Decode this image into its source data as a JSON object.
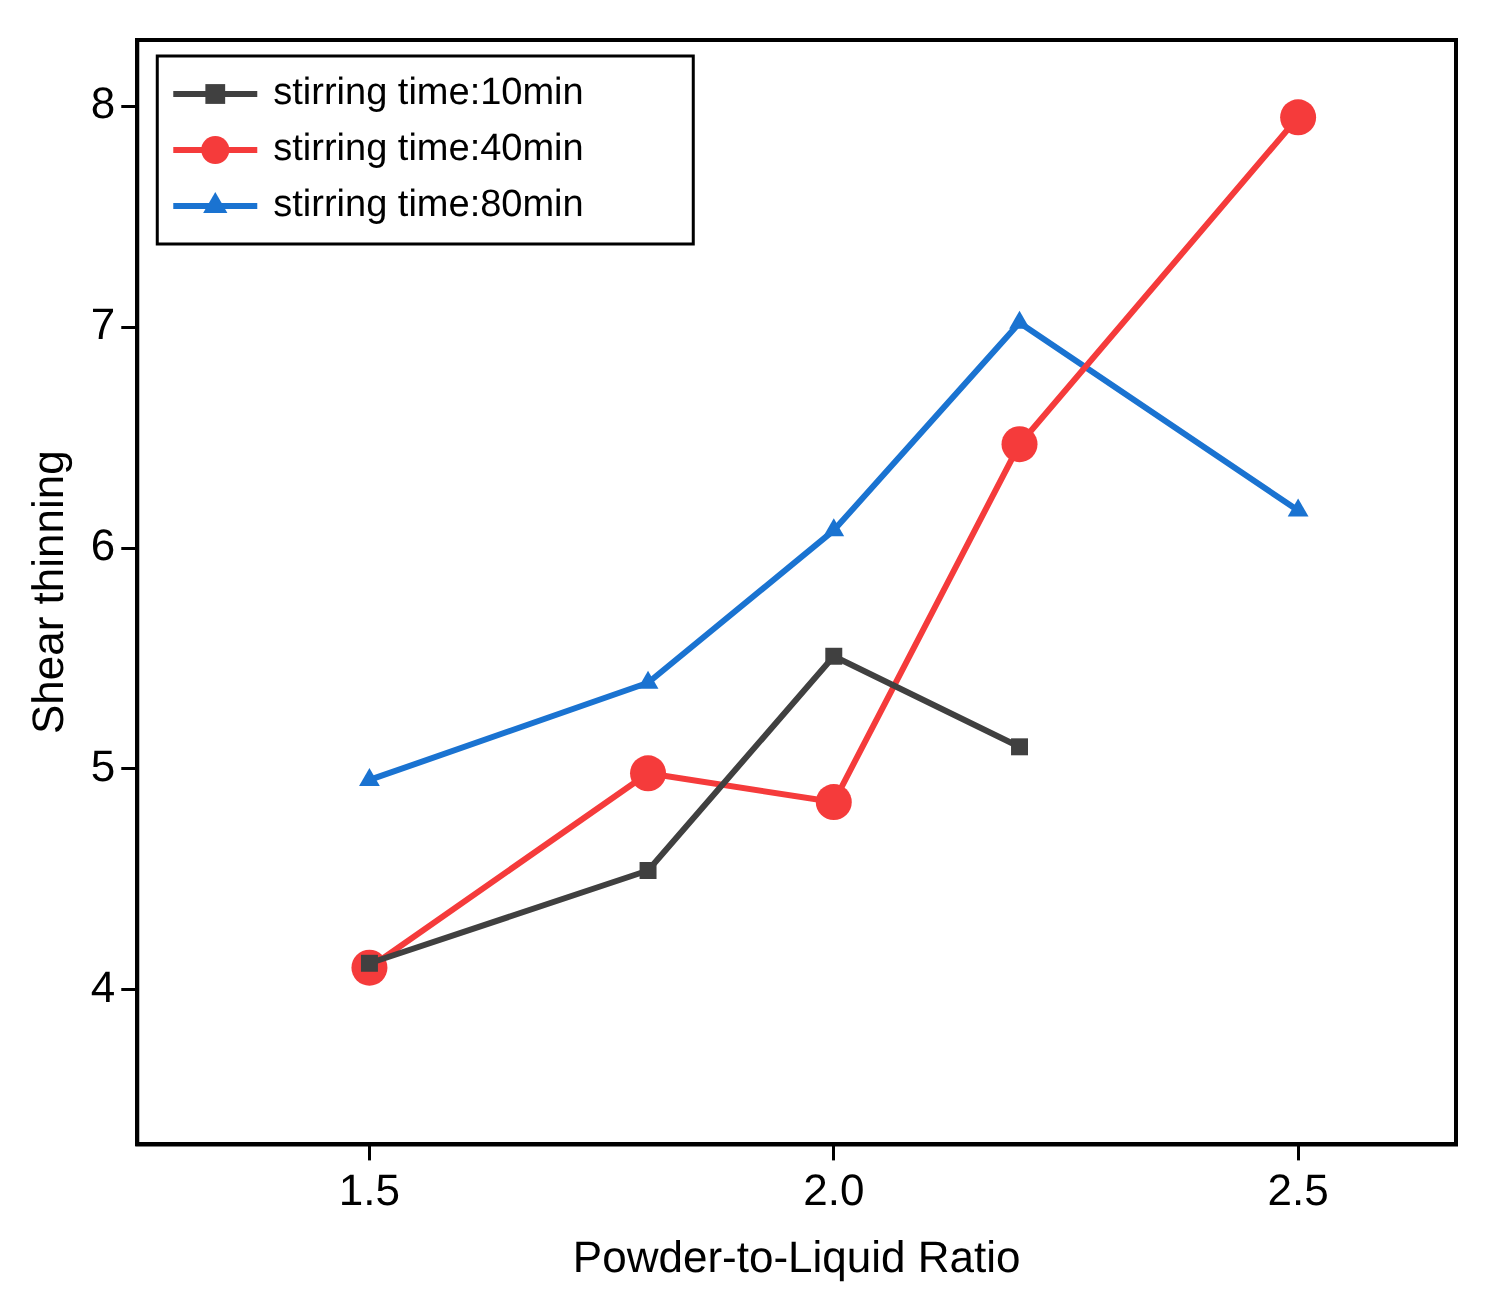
{
  "chart_data": {
    "type": "line",
    "xlabel": "Powder-to-Liquid Ratio",
    "ylabel": "Shear thinning",
    "xlim": [
      1.25,
      2.67
    ],
    "xticks": [
      {
        "value": 1.5,
        "label": "1.5"
      },
      {
        "value": 2.0,
        "label": "2.0"
      },
      {
        "value": 2.5,
        "label": "2.5"
      }
    ],
    "ylim": [
      3.3,
      8.3
    ],
    "yticks": [
      4,
      5,
      6,
      7,
      8
    ],
    "grid": false,
    "legend": "top left",
    "series": [
      {
        "name": "stirring time:10min",
        "color": "#404040",
        "marker": "square",
        "x": [
          1.5,
          1.8,
          2.0,
          2.2
        ],
        "values": [
          4.12,
          4.54,
          5.51,
          5.1
        ]
      },
      {
        "name": "stirring time:40min",
        "color": "#f53b3b",
        "marker": "circle",
        "x": [
          1.5,
          1.8,
          2.0,
          2.2,
          2.5
        ],
        "values": [
          4.1,
          4.98,
          4.85,
          6.47,
          7.95
        ]
      },
      {
        "name": "stirring time:80min",
        "color": "#1a73d1",
        "marker": "triangle",
        "x": [
          1.5,
          1.8,
          2.0,
          2.2,
          2.5
        ],
        "values": [
          4.95,
          5.39,
          6.08,
          7.02,
          6.17
        ]
      }
    ]
  }
}
